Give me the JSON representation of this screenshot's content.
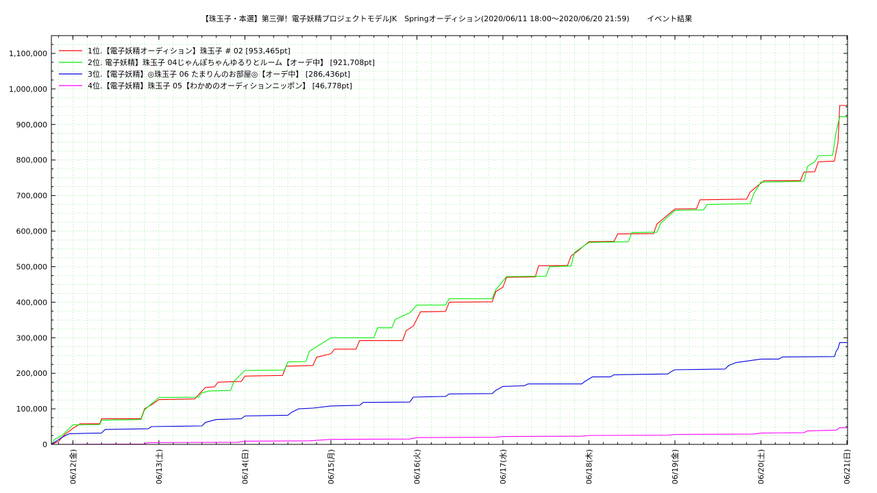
{
  "chart_data": {
    "type": "line",
    "title": "【珠玉子・本選】第三弾！電子妖精プロジェクトモデルJK　Springオーディション(2020/06/11 18:00～2020/06/20 21:59)　　 イベント結果",
    "xlabel": "",
    "ylabel": "",
    "xlim": [
      "2020-06-11 18:00",
      "2020-06-21 00:10"
    ],
    "ylim": [
      0,
      1150000
    ],
    "grid": true,
    "legend_position": "top-left",
    "x_ticks": [
      {
        "label": "06/12(金)",
        "value": "2020-06-12 00:00"
      },
      {
        "label": "06/13(土)",
        "value": "2020-06-13 00:00"
      },
      {
        "label": "06/14(日)",
        "value": "2020-06-14 00:00"
      },
      {
        "label": "06/15(月)",
        "value": "2020-06-15 00:00"
      },
      {
        "label": "06/16(火)",
        "value": "2020-06-16 00:00"
      },
      {
        "label": "06/17(水)",
        "value": "2020-06-17 00:00"
      },
      {
        "label": "06/18(木)",
        "value": "2020-06-18 00:00"
      },
      {
        "label": "06/19(金)",
        "value": "2020-06-19 00:00"
      },
      {
        "label": "06/20(土)",
        "value": "2020-06-20 00:00"
      },
      {
        "label": "06/21(日)",
        "value": "2020-06-21 00:00"
      }
    ],
    "y_ticks": [
      {
        "label": "0",
        "value": 0
      },
      {
        "label": "100,000",
        "value": 100000
      },
      {
        "label": "200,000",
        "value": 200000
      },
      {
        "label": "300,000",
        "value": 300000
      },
      {
        "label": "400,000",
        "value": 400000
      },
      {
        "label": "500,000",
        "value": 500000
      },
      {
        "label": "600,000",
        "value": 600000
      },
      {
        "label": "700,000",
        "value": 700000
      },
      {
        "label": "800,000",
        "value": 800000
      },
      {
        "label": "900,000",
        "value": 900000
      },
      {
        "label": "1,000,000",
        "value": 1000000
      },
      {
        "label": "1,100,000",
        "value": 1100000
      }
    ],
    "series": [
      {
        "name": "1位.【電子妖精オーディション】珠玉子 # 02 [953,465pt]",
        "color": "#ff0000",
        "points": [
          [
            "2020-06-11 18:00",
            0
          ],
          [
            "2020-06-11 20:00",
            8000
          ],
          [
            "2020-06-11 21:00",
            20000
          ],
          [
            "2020-06-11 22:00",
            30000
          ],
          [
            "2020-06-12 00:00",
            45000
          ],
          [
            "2020-06-12 02:00",
            58000
          ],
          [
            "2020-06-12 07:30",
            58000
          ],
          [
            "2020-06-12 08:00",
            72000
          ],
          [
            "2020-06-12 19:00",
            72000
          ],
          [
            "2020-06-12 20:00",
            100000
          ],
          [
            "2020-06-12 22:00",
            112000
          ],
          [
            "2020-06-13 00:00",
            126000
          ],
          [
            "2020-06-13 10:00",
            128000
          ],
          [
            "2020-06-13 12:00",
            150000
          ],
          [
            "2020-06-13 13:00",
            160000
          ],
          [
            "2020-06-13 15:30",
            162000
          ],
          [
            "2020-06-13 16:30",
            175000
          ],
          [
            "2020-06-13 23:00",
            177000
          ],
          [
            "2020-06-14 00:00",
            192000
          ],
          [
            "2020-06-14 10:30",
            194000
          ],
          [
            "2020-06-14 11:30",
            220000
          ],
          [
            "2020-06-14 19:00",
            222000
          ],
          [
            "2020-06-14 20:00",
            245000
          ],
          [
            "2020-06-15 00:00",
            255000
          ],
          [
            "2020-06-15 01:00",
            268000
          ],
          [
            "2020-06-15 07:00",
            268000
          ],
          [
            "2020-06-15 08:00",
            292000
          ],
          [
            "2020-06-15 20:00",
            292000
          ],
          [
            "2020-06-15 21:00",
            320000
          ],
          [
            "2020-06-15 23:00",
            333000
          ],
          [
            "2020-06-16 01:00",
            373000
          ],
          [
            "2020-06-16 08:00",
            374000
          ],
          [
            "2020-06-16 09:00",
            400000
          ],
          [
            "2020-06-16 21:00",
            401000
          ],
          [
            "2020-06-16 22:00",
            430000
          ],
          [
            "2020-06-17 00:00",
            442000
          ],
          [
            "2020-06-17 01:00",
            470000
          ],
          [
            "2020-06-17 09:00",
            471000
          ],
          [
            "2020-06-17 10:00",
            503000
          ],
          [
            "2020-06-17 18:00",
            503000
          ],
          [
            "2020-06-17 19:00",
            530000
          ],
          [
            "2020-06-17 21:00",
            545000
          ],
          [
            "2020-06-18 00:00",
            570000
          ],
          [
            "2020-06-18 07:00",
            571000
          ],
          [
            "2020-06-18 08:00",
            592000
          ],
          [
            "2020-06-18 18:00",
            593000
          ],
          [
            "2020-06-18 19:00",
            620000
          ],
          [
            "2020-06-18 21:00",
            637000
          ],
          [
            "2020-06-19 00:00",
            662000
          ],
          [
            "2020-06-19 06:00",
            663000
          ],
          [
            "2020-06-19 07:00",
            688000
          ],
          [
            "2020-06-19 20:00",
            690000
          ],
          [
            "2020-06-19 21:00",
            710000
          ],
          [
            "2020-06-20 00:00",
            735000
          ],
          [
            "2020-06-20 01:00",
            742000
          ],
          [
            "2020-06-20 11:00",
            742000
          ],
          [
            "2020-06-20 12:00",
            766000
          ],
          [
            "2020-06-20 15:00",
            767000
          ],
          [
            "2020-06-20 16:00",
            795000
          ],
          [
            "2020-06-20 20:30",
            797000
          ],
          [
            "2020-06-20 21:30",
            850000
          ],
          [
            "2020-06-20 21:59",
            953465
          ],
          [
            "2020-06-21 00:10",
            953465
          ]
        ]
      },
      {
        "name": "2位. 電子妖精】珠玉子 04じゃんぽちゃんゆるりとルーム【オーデ中】 [921,708pt]",
        "color": "#00ee00",
        "points": [
          [
            "2020-06-11 18:00",
            0
          ],
          [
            "2020-06-11 19:00",
            15000
          ],
          [
            "2020-06-11 21:00",
            25000
          ],
          [
            "2020-06-11 23:00",
            45000
          ],
          [
            "2020-06-12 00:00",
            55000
          ],
          [
            "2020-06-12 07:30",
            56000
          ],
          [
            "2020-06-12 08:00",
            68000
          ],
          [
            "2020-06-12 19:00",
            70000
          ],
          [
            "2020-06-12 20:00",
            97000
          ],
          [
            "2020-06-13 00:00",
            132000
          ],
          [
            "2020-06-13 11:00",
            133000
          ],
          [
            "2020-06-13 12:00",
            145000
          ],
          [
            "2020-06-13 14:00",
            150000
          ],
          [
            "2020-06-13 20:00",
            152000
          ],
          [
            "2020-06-13 21:00",
            178000
          ],
          [
            "2020-06-14 00:00",
            208000
          ],
          [
            "2020-06-14 11:00",
            209000
          ],
          [
            "2020-06-14 12:00",
            232000
          ],
          [
            "2020-06-14 17:00",
            233000
          ],
          [
            "2020-06-14 18:00",
            262000
          ],
          [
            "2020-06-15 00:00",
            300000
          ],
          [
            "2020-06-15 12:00",
            300000
          ],
          [
            "2020-06-15 13:00",
            328000
          ],
          [
            "2020-06-15 17:00",
            328000
          ],
          [
            "2020-06-15 18:00",
            352000
          ],
          [
            "2020-06-15 22:00",
            370000
          ],
          [
            "2020-06-16 00:00",
            392000
          ],
          [
            "2020-06-16 08:00",
            392000
          ],
          [
            "2020-06-16 09:00",
            410000
          ],
          [
            "2020-06-16 21:00",
            410000
          ],
          [
            "2020-06-16 22:00",
            435000
          ],
          [
            "2020-06-17 01:00",
            472000
          ],
          [
            "2020-06-17 12:00",
            473000
          ],
          [
            "2020-06-17 13:00",
            500000
          ],
          [
            "2020-06-17 19:00",
            502000
          ],
          [
            "2020-06-17 20:00",
            540000
          ],
          [
            "2020-06-18 00:00",
            568000
          ],
          [
            "2020-06-18 11:00",
            570000
          ],
          [
            "2020-06-18 12:00",
            596000
          ],
          [
            "2020-06-18 19:00",
            597000
          ],
          [
            "2020-06-18 20:00",
            622000
          ],
          [
            "2020-06-18 22:00",
            640000
          ],
          [
            "2020-06-19 00:00",
            658000
          ],
          [
            "2020-06-19 08:00",
            660000
          ],
          [
            "2020-06-19 09:00",
            675000
          ],
          [
            "2020-06-19 21:00",
            677000
          ],
          [
            "2020-06-19 22:00",
            705000
          ],
          [
            "2020-06-20 00:00",
            738000
          ],
          [
            "2020-06-20 12:00",
            740000
          ],
          [
            "2020-06-20 13:00",
            782000
          ],
          [
            "2020-06-20 15:00",
            795000
          ],
          [
            "2020-06-20 16:00",
            812000
          ],
          [
            "2020-06-20 20:00",
            813000
          ],
          [
            "2020-06-20 21:00",
            880000
          ],
          [
            "2020-06-20 21:59",
            921708
          ],
          [
            "2020-06-21 00:10",
            921708
          ]
        ]
      },
      {
        "name": "3位.【電子妖精】◎珠玉子 06 たまりんのお部屋◎【オーデ中】 [286,436pt]",
        "color": "#0000dd",
        "points": [
          [
            "2020-06-11 18:00",
            0
          ],
          [
            "2020-06-11 21:00",
            20000
          ],
          [
            "2020-06-11 23:00",
            30000
          ],
          [
            "2020-06-12 08:00",
            32000
          ],
          [
            "2020-06-12 09:00",
            42000
          ],
          [
            "2020-06-12 21:00",
            44000
          ],
          [
            "2020-06-12 22:00",
            50000
          ],
          [
            "2020-06-13 12:00",
            52000
          ],
          [
            "2020-06-13 13:00",
            62000
          ],
          [
            "2020-06-13 16:00",
            70000
          ],
          [
            "2020-06-13 23:00",
            72000
          ],
          [
            "2020-06-14 00:00",
            80000
          ],
          [
            "2020-06-14 12:00",
            82000
          ],
          [
            "2020-06-14 13:00",
            90000
          ],
          [
            "2020-06-14 15:00",
            100000
          ],
          [
            "2020-06-14 19:00",
            102000
          ],
          [
            "2020-06-15 00:00",
            108000
          ],
          [
            "2020-06-15 08:00",
            110000
          ],
          [
            "2020-06-15 09:00",
            118000
          ],
          [
            "2020-06-15 22:00",
            119000
          ],
          [
            "2020-06-15 23:00",
            133000
          ],
          [
            "2020-06-16 08:00",
            135000
          ],
          [
            "2020-06-16 09:00",
            142000
          ],
          [
            "2020-06-16 21:00",
            143000
          ],
          [
            "2020-06-16 22:00",
            152000
          ],
          [
            "2020-06-17 00:00",
            163000
          ],
          [
            "2020-06-17 06:00",
            165000
          ],
          [
            "2020-06-17 07:00",
            170000
          ],
          [
            "2020-06-17 22:00",
            170000
          ],
          [
            "2020-06-17 23:00",
            178000
          ],
          [
            "2020-06-18 01:00",
            190000
          ],
          [
            "2020-06-18 06:00",
            190000
          ],
          [
            "2020-06-18 07:00",
            196000
          ],
          [
            "2020-06-18 22:00",
            198000
          ],
          [
            "2020-06-18 23:00",
            205000
          ],
          [
            "2020-06-19 00:00",
            210000
          ],
          [
            "2020-06-19 14:00",
            212000
          ],
          [
            "2020-06-19 15:00",
            222000
          ],
          [
            "2020-06-19 17:00",
            230000
          ],
          [
            "2020-06-20 00:00",
            240000
          ],
          [
            "2020-06-20 05:00",
            240000
          ],
          [
            "2020-06-20 06:00",
            246000
          ],
          [
            "2020-06-20 20:30",
            247000
          ],
          [
            "2020-06-20 21:00",
            262000
          ],
          [
            "2020-06-20 21:30",
            270000
          ],
          [
            "2020-06-20 21:59",
            286436
          ],
          [
            "2020-06-21 00:10",
            286436
          ]
        ]
      },
      {
        "name": "4位.【電子妖精】珠玉子 05【わかめのオーディションニッポン】 [46,778pt]",
        "color": "#ff00ff",
        "points": [
          [
            "2020-06-11 18:00",
            0
          ],
          [
            "2020-06-12 20:00",
            1000
          ],
          [
            "2020-06-12 21:00",
            5000
          ],
          [
            "2020-06-13 22:00",
            6000
          ],
          [
            "2020-06-14 00:00",
            9000
          ],
          [
            "2020-06-14 18:00",
            10000
          ],
          [
            "2020-06-15 00:00",
            14000
          ],
          [
            "2020-06-15 22:00",
            15000
          ],
          [
            "2020-06-16 00:00",
            19000
          ],
          [
            "2020-06-16 22:00",
            20000
          ],
          [
            "2020-06-17 00:00",
            22000
          ],
          [
            "2020-06-17 22:00",
            23000
          ],
          [
            "2020-06-18 00:00",
            25000
          ],
          [
            "2020-06-18 22:00",
            26000
          ],
          [
            "2020-06-19 00:00",
            28000
          ],
          [
            "2020-06-19 22:00",
            29000
          ],
          [
            "2020-06-20 00:00",
            32000
          ],
          [
            "2020-06-20 12:00",
            33000
          ],
          [
            "2020-06-20 13:00",
            38000
          ],
          [
            "2020-06-20 21:00",
            40000
          ],
          [
            "2020-06-20 21:59",
            46778
          ],
          [
            "2020-06-21 00:10",
            46778
          ]
        ]
      }
    ]
  }
}
